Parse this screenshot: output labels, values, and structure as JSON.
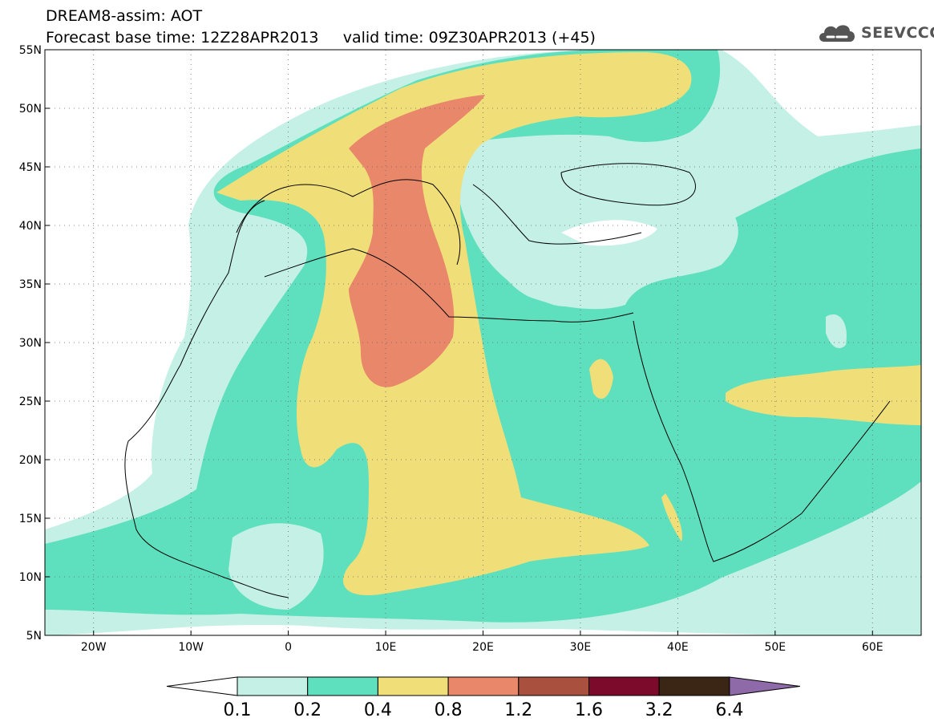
{
  "title": {
    "line1": "DREAM8-assim: AOT",
    "line2": "Forecast base time: 12Z28APR2013     valid time: 09Z30APR2013 (+45)"
  },
  "logo": {
    "text": "SEEVCCC",
    "icon": "cloud-icon"
  },
  "map": {
    "lon_range": [
      -25,
      65
    ],
    "lat_range": [
      5,
      55
    ],
    "lon_ticks": [
      {
        "value": -20,
        "label": "20W"
      },
      {
        "value": -10,
        "label": "10W"
      },
      {
        "value": 0,
        "label": "0"
      },
      {
        "value": 10,
        "label": "10E"
      },
      {
        "value": 20,
        "label": "20E"
      },
      {
        "value": 30,
        "label": "30E"
      },
      {
        "value": 40,
        "label": "40E"
      },
      {
        "value": 50,
        "label": "50E"
      },
      {
        "value": 60,
        "label": "60E"
      }
    ],
    "lat_ticks": [
      {
        "value": 5,
        "label": "5N"
      },
      {
        "value": 10,
        "label": "10N"
      },
      {
        "value": 15,
        "label": "15N"
      },
      {
        "value": 20,
        "label": "20N"
      },
      {
        "value": 25,
        "label": "25N"
      },
      {
        "value": 30,
        "label": "30N"
      },
      {
        "value": 35,
        "label": "35N"
      },
      {
        "value": 40,
        "label": "40N"
      },
      {
        "value": 45,
        "label": "45N"
      },
      {
        "value": 50,
        "label": "50N"
      },
      {
        "value": 55,
        "label": "55N"
      }
    ],
    "grid": "dotted"
  },
  "legend": {
    "classes": [
      {
        "range": "below 0.1",
        "color": "#ffffff"
      },
      {
        "range": "0.1-0.2",
        "color": "#c4f0e6"
      },
      {
        "range": "0.2-0.4",
        "color": "#5ee0be"
      },
      {
        "range": "0.4-0.8",
        "color": "#f0df78"
      },
      {
        "range": "0.8-1.2",
        "color": "#e8876a"
      },
      {
        "range": "1.2-1.6",
        "color": "#a9503f"
      },
      {
        "range": "1.6-3.2",
        "color": "#7c0a2a"
      },
      {
        "range": "3.2-6.4",
        "color": "#3b2616"
      },
      {
        "range": "above 6.4",
        "color": "#8e6aa8"
      }
    ],
    "labels": [
      "0.1",
      "0.2",
      "0.4",
      "0.8",
      "1.2",
      "1.6",
      "3.2",
      "6.4"
    ]
  }
}
